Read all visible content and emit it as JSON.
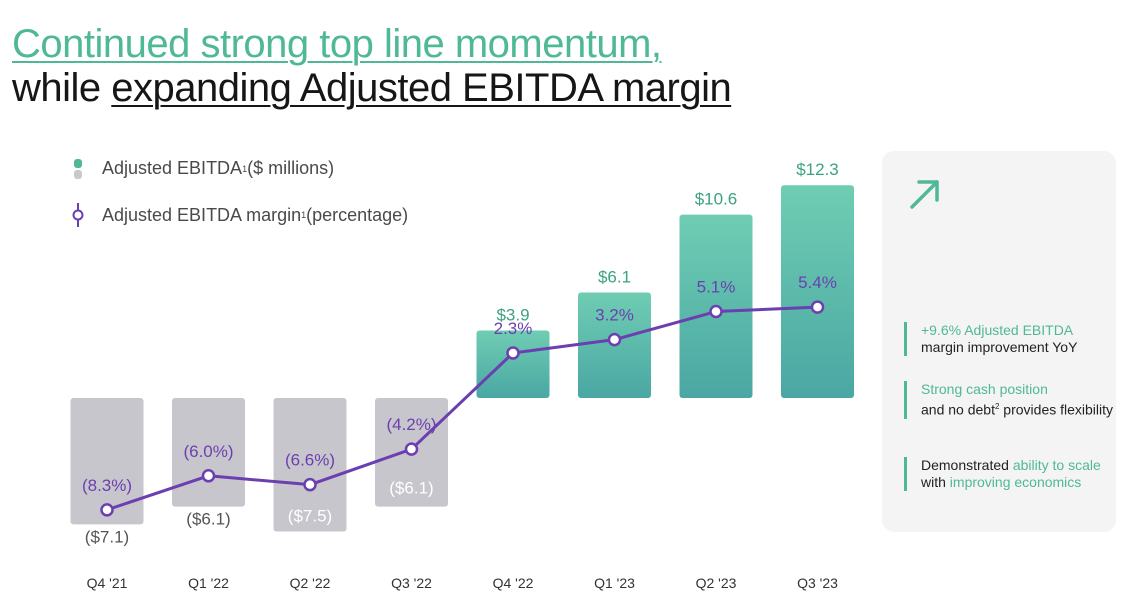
{
  "title": {
    "line1": "Continued strong top line momentum,",
    "line2_prefix": "while ",
    "line2_underlined": "expanding Adjusted EBITDA margin"
  },
  "legend": {
    "bars_label": "Adjusted EBITDA",
    "bars_sup": "1",
    "bars_unit": " ($ millions)",
    "line_label": "Adjusted EBITDA margin",
    "line_sup": "1",
    "line_unit": " (percentage)"
  },
  "panel": {
    "icon": "trend-up-arrow-icon",
    "b1_green": "+9.6% Adjusted EBITDA",
    "b1_rest": "margin improvement YoY",
    "b2_green": "Strong cash position",
    "b2_rest_a": "and no debt",
    "b2_sup": "2",
    "b2_rest_b": " provides flexibility",
    "b3_a": "Demonstrated ",
    "b3_g1": "ability to scale",
    "b3_b": " with ",
    "b3_g2": "improving economics"
  },
  "chart_data": {
    "type": "bar",
    "categories": [
      "Q4 '21",
      "Q1 '22",
      "Q2 '22",
      "Q3 '22",
      "Q4 '22",
      "Q1 '23",
      "Q2 '23",
      "Q3 '23"
    ],
    "series": [
      {
        "name": "Adjusted EBITDA ($ millions)",
        "type": "bar",
        "values": [
          -7.1,
          -6.1,
          -7.5,
          -6.1,
          3.9,
          6.1,
          10.6,
          12.3
        ],
        "labels": [
          "($7.1)",
          "($6.1)",
          "($7.5)",
          "($6.1)",
          "$3.9",
          "$6.1",
          "$10.6",
          "$12.3"
        ]
      },
      {
        "name": "Adjusted EBITDA margin (percentage)",
        "type": "line",
        "values": [
          -8.3,
          -6.0,
          -6.6,
          -4.2,
          2.3,
          3.2,
          5.1,
          5.4
        ],
        "labels": [
          "(8.3%)",
          "(6.0%)",
          "(6.6%)",
          "(4.2%)",
          "2.3%",
          "3.2%",
          "5.1%",
          "5.4%"
        ]
      }
    ],
    "colors": {
      "positive_bar_top": "#6fcdb3",
      "positive_bar_bottom": "#4aa7a3",
      "negative_bar": "#c7c6cc",
      "line": "#6c3fb0",
      "positive_label": "#3aa37e",
      "negative_label": "#555555",
      "margin_label": "#6c3fb0",
      "axis_label": "#333333"
    }
  }
}
